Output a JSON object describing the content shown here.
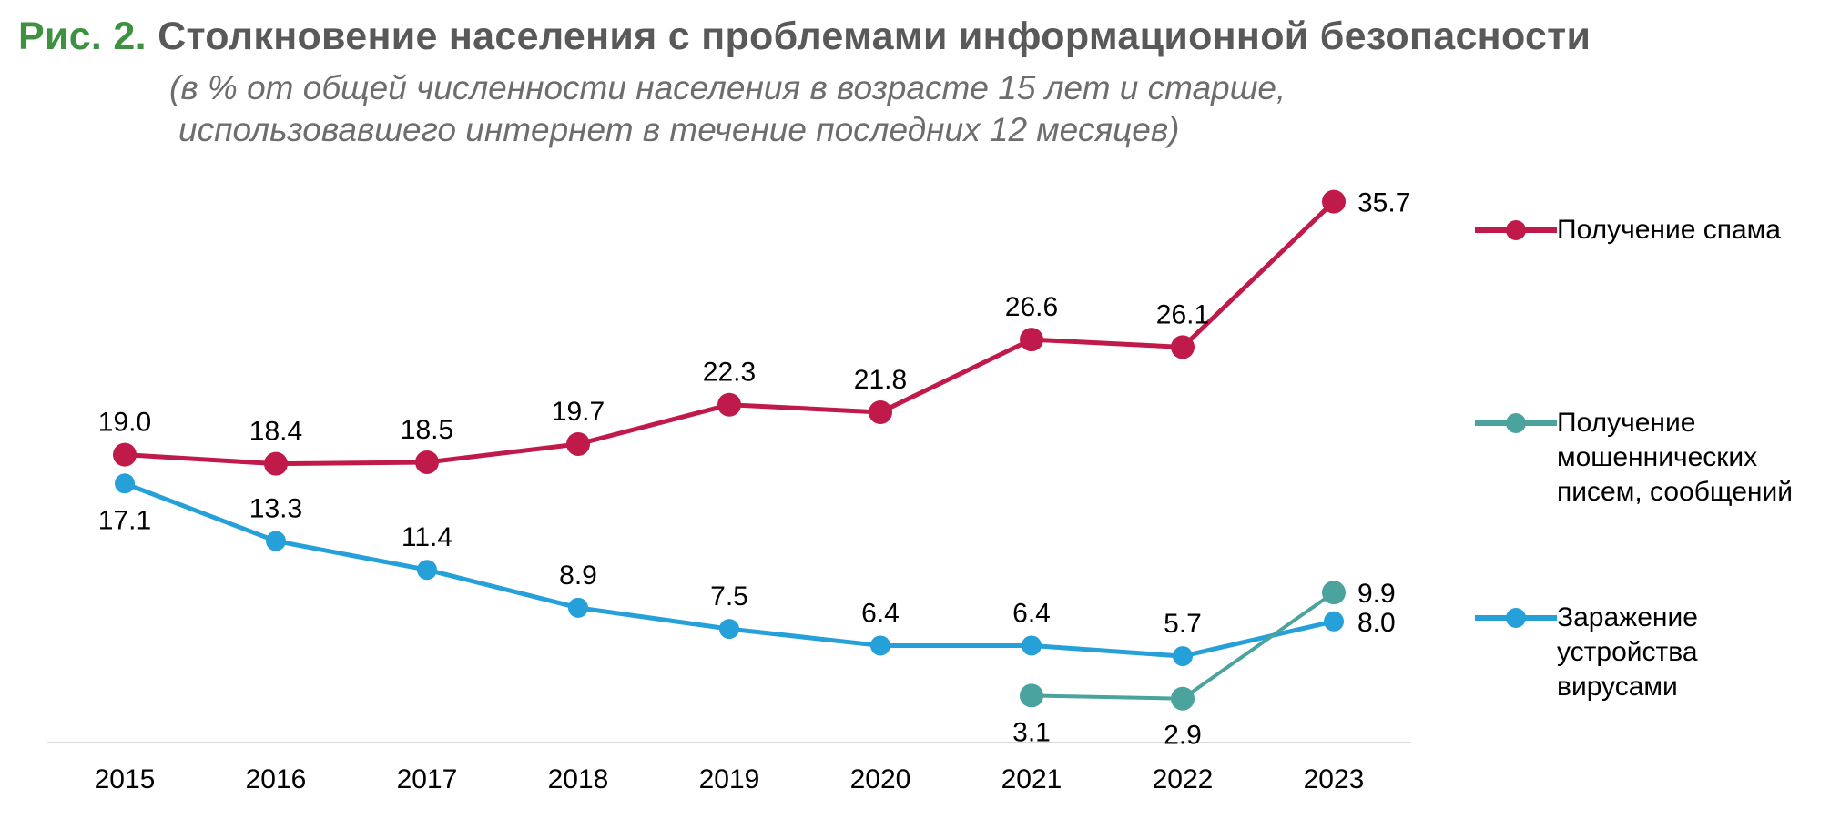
{
  "header": {
    "prefix": "Рис. 2.",
    "title": "Столкновение населения с проблемами информационной безопасности",
    "subtitle_line1": "(в % от общей численности населения в возрасте 15 лет и старше,",
    "subtitle_line2": "использовавшего интернет в течение последних 12 месяцев)"
  },
  "colors": {
    "title_prefix": "#3f9142",
    "title_main": "#595959",
    "subtitle": "#6d6d6d",
    "axis": "#d9d9d9"
  },
  "chart_data": {
    "type": "line",
    "categories": [
      "2015",
      "2016",
      "2017",
      "2018",
      "2019",
      "2020",
      "2021",
      "2022",
      "2023"
    ],
    "ylim": [
      0,
      40
    ],
    "grid": false,
    "legend_position": "right",
    "series": [
      {
        "name": "Получение спама",
        "color": "#c01a4a",
        "values": [
          19.0,
          18.4,
          18.5,
          19.7,
          22.3,
          21.8,
          26.6,
          26.1,
          35.7
        ],
        "labels": [
          "19.0",
          "18.4",
          "18.5",
          "19.7",
          "22.3",
          "21.8",
          "26.6",
          "26.1",
          "35.7"
        ]
      },
      {
        "name": "Получение мошеннических писем, сообщений",
        "color": "#4ba39e",
        "values": [
          null,
          null,
          null,
          null,
          null,
          null,
          3.1,
          2.9,
          9.9
        ],
        "labels": [
          null,
          null,
          null,
          null,
          null,
          null,
          "3.1",
          "2.9",
          "9.9"
        ]
      },
      {
        "name": "Заражение устройства вирусами",
        "color": "#25a0d8",
        "values": [
          17.1,
          13.3,
          11.4,
          8.9,
          7.5,
          6.4,
          6.4,
          5.7,
          8.0
        ],
        "labels": [
          "17.1",
          "13.3",
          "11.4",
          "8.9",
          "7.5",
          "6.4",
          "6.4",
          "5.7",
          "8.0"
        ]
      }
    ]
  },
  "legend": {
    "items": [
      {
        "label_lines": [
          "Получение спама"
        ],
        "color": "#c01a4a"
      },
      {
        "label_lines": [
          "Получение",
          "мошеннических",
          "писем, сообщений"
        ],
        "color": "#4ba39e"
      },
      {
        "label_lines": [
          "Заражение",
          "устройства",
          "вирусами"
        ],
        "color": "#25a0d8"
      }
    ]
  }
}
